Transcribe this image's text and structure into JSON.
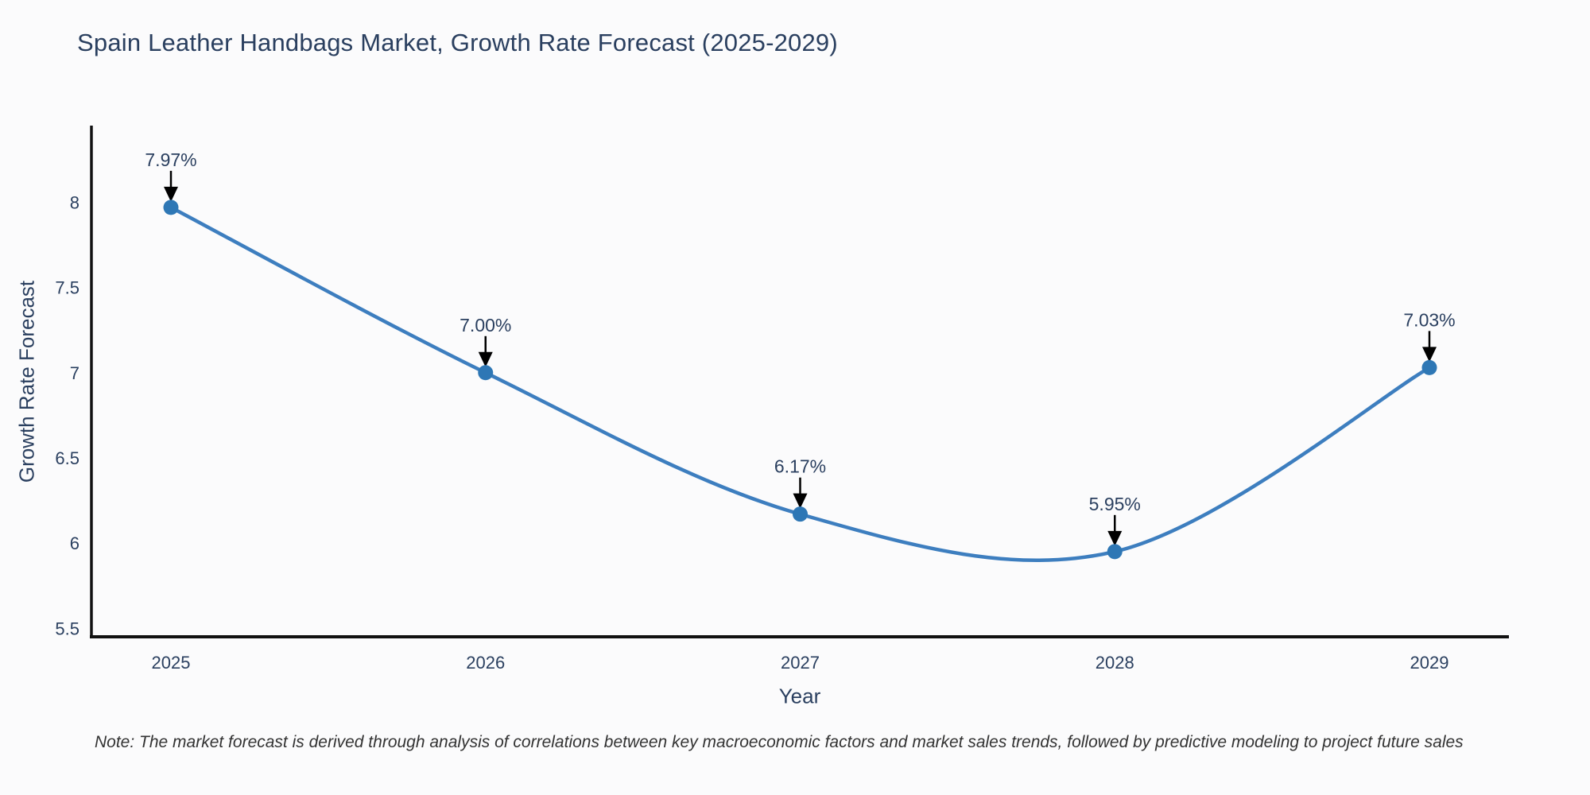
{
  "chart_data": {
    "type": "line",
    "title": "Spain Leather Handbags Market, Growth Rate Forecast (2025-2029)",
    "xlabel": "Year",
    "ylabel": "Growth Rate Forecast",
    "x": [
      2025,
      2026,
      2027,
      2028,
      2029
    ],
    "values": [
      7.97,
      7.0,
      6.17,
      5.95,
      7.03
    ],
    "point_labels": [
      "7.97%",
      "7.00%",
      "6.17%",
      "5.95%",
      "7.03%"
    ],
    "line_shape": "spline",
    "xticks": [
      "2025",
      "2026",
      "2027",
      "2028",
      "2029"
    ],
    "yticks": [
      5.5,
      6,
      6.5,
      7,
      7.5,
      8
    ],
    "ytick_labels": [
      "5.5",
      "6",
      "6.5",
      "7",
      "7.5",
      "8"
    ],
    "ylim": [
      5.45,
      8.45
    ],
    "xlim": [
      2024.75,
      2029.25
    ],
    "grid": false,
    "legend": "none",
    "annotation_arrow": "down-arrow-to-marker",
    "colors": {
      "line": "#3d7ebf",
      "marker": "#2e77b5",
      "axis": "#111111",
      "text": "#2a3f5f",
      "arrow": "#000000",
      "background": "#fbfbfc"
    },
    "note": "Note: The market forecast is derived through analysis of correlations between key macroeconomic factors and market sales trends, followed by predictive modeling to project future sales"
  }
}
